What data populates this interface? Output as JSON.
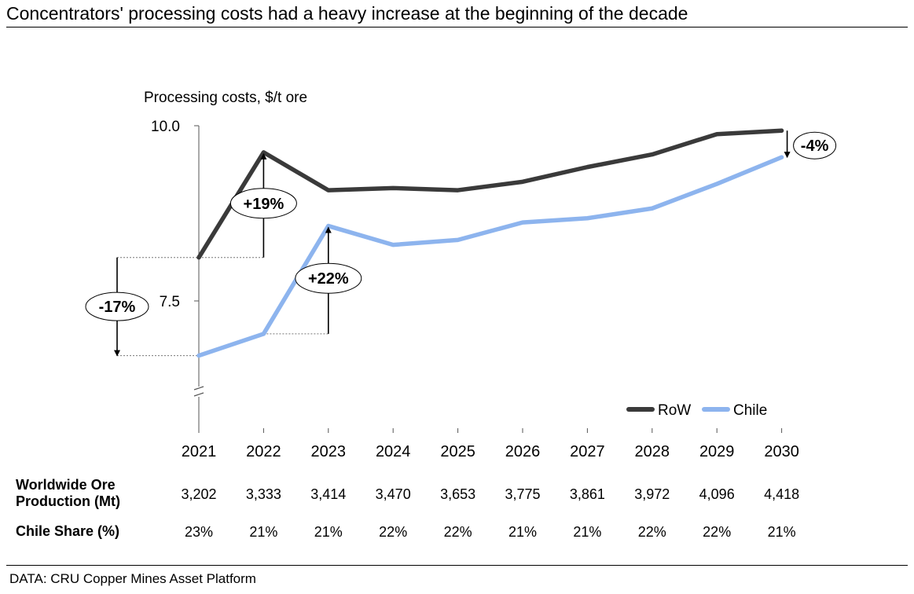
{
  "title": "Concentrators' processing costs had a heavy increase at the beginning of the decade",
  "source": "DATA: CRU Copper Mines Asset Platform",
  "chart_data": {
    "type": "line",
    "ylabel": "Processing costs, $/t ore",
    "ylim": [
      5.8,
      10.0
    ],
    "yticks": [
      {
        "v": 10.0,
        "label": "10.0"
      },
      {
        "v": 7.5,
        "label": "7.5"
      }
    ],
    "axis_break": true,
    "x": [
      "2021",
      "2022",
      "2023",
      "2024",
      "2025",
      "2026",
      "2027",
      "2028",
      "2029",
      "2030"
    ],
    "series": [
      {
        "name": "RoW",
        "color": "#3a3a3a",
        "values": [
          8.12,
          9.62,
          9.08,
          9.11,
          9.08,
          9.2,
          9.41,
          9.59,
          9.88,
          9.93
        ]
      },
      {
        "name": "Chile",
        "color": "#8db4ee",
        "values": [
          6.72,
          7.03,
          8.57,
          8.3,
          8.37,
          8.62,
          8.68,
          8.82,
          9.17,
          9.55
        ]
      }
    ],
    "legend": "bottom-right",
    "annotations": [
      {
        "id": "ann-19",
        "label": "+19%",
        "x_index": 1,
        "from": 8.12,
        "to": 9.62,
        "ref_from_index": 0
      },
      {
        "id": "ann-22",
        "label": "+22%",
        "x_index": 2,
        "from": 7.03,
        "to": 8.57,
        "ref_from_index": 1
      },
      {
        "id": "ann-17",
        "label": "-17%",
        "x_index": 0,
        "from": 8.12,
        "to": 6.72,
        "side": "left"
      },
      {
        "id": "ann-4",
        "label": "-4%",
        "x_index": 9,
        "from": 9.93,
        "to": 9.55,
        "side": "right"
      }
    ]
  },
  "table": {
    "rows": [
      {
        "label_lines": [
          "Worldwide Ore",
          "Production (Mt)"
        ],
        "values": [
          "3,202",
          "3,333",
          "3,414",
          "3,470",
          "3,653",
          "3,775",
          "3,861",
          "3,972",
          "4,096",
          "4,418"
        ]
      },
      {
        "label_lines": [
          "Chile Share (%)"
        ],
        "values": [
          "23%",
          "21%",
          "21%",
          "22%",
          "22%",
          "21%",
          "21%",
          "22%",
          "22%",
          "21%"
        ]
      }
    ]
  }
}
